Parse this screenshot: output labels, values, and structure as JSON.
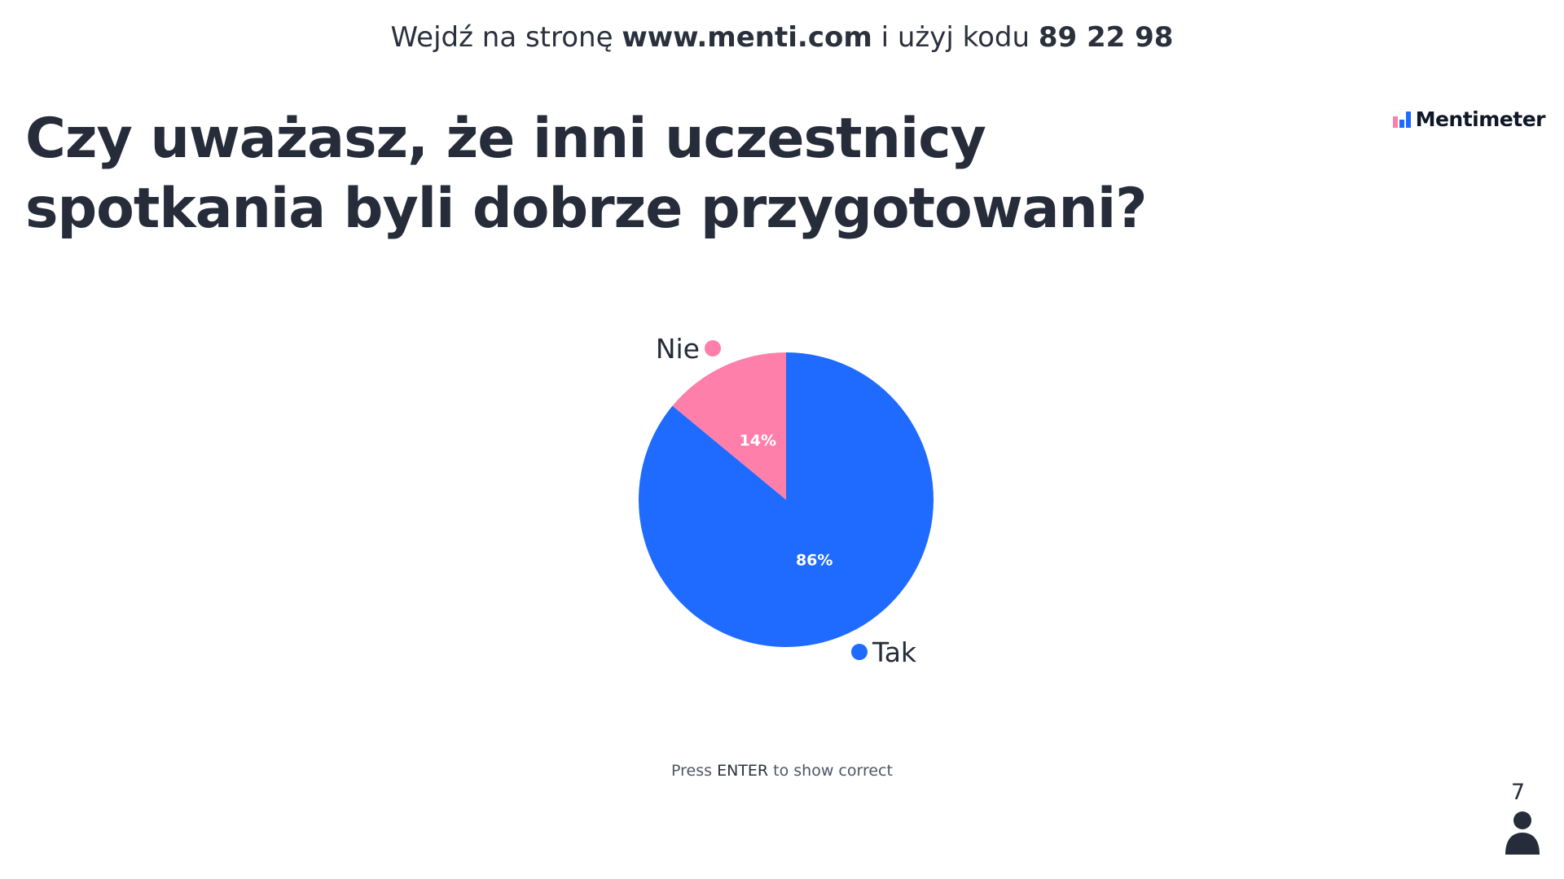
{
  "join": {
    "prefix": "Wejdź na stronę",
    "url": "www.menti.com",
    "middle": "i użyj kodu",
    "code": "89 22 98"
  },
  "logo": {
    "text": "Mentimeter"
  },
  "question": "Czy uważasz, że inni uczestnicy spotkania byli dobrze przygotowani?",
  "chart_data": {
    "type": "pie",
    "categories": [
      "Tak",
      "Nie"
    ],
    "values": [
      86,
      14
    ],
    "labels": [
      "86%",
      "14%"
    ],
    "colors": [
      "#1f6bff",
      "#ff7fab"
    ]
  },
  "footer": {
    "hint_prefix": "Press",
    "hint_key": "ENTER",
    "hint_suffix": "to show correct"
  },
  "participants": {
    "count": "7",
    "icon": "person-icon"
  }
}
